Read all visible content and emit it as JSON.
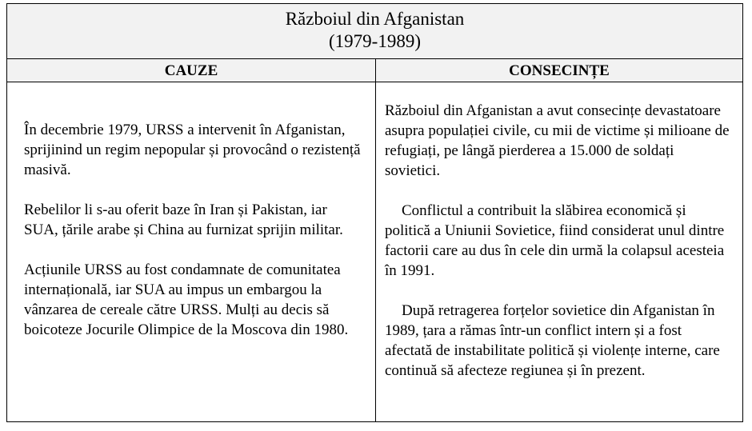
{
  "document": {
    "title_line1": "Războiul din Afganistan",
    "title_line2": "(1979-1989)",
    "headers": {
      "causes": "CAUZE",
      "consequences": "CONSECINȚE"
    },
    "causes": [
      "În decembrie 1979, URSS a intervenit în Afganistan, sprijinind un regim nepopular și provocând o rezistență masivă.",
      "Rebelilor li s-au oferit baze în Iran și Pakistan, iar SUA, țările arabe și China au furnizat sprijin militar.",
      "Acțiunile URSS au fost condamnate de comunitatea internațională, iar SUA au impus un embargou la vânzarea de cereale către URSS. Mulți au decis să boicoteze Jocurile Olimpice de la Moscova din 1980."
    ],
    "consequences": [
      "Războiul din Afganistan a avut consecințe devastatoare asupra populației civile, cu mii de victime și milioane de refugiați, pe lângă pierderea a 15.000 de soldați sovietici.",
      "Conflictul a contribuit la slăbirea economică și politică a Uniunii Sovietice, fiind considerat unul dintre factorii care au dus în cele din urmă la colapsul acesteia în 1991.",
      "După retragerea forțelor sovietice din Afganistan în 1989, țara a rămas într-un conflict intern și a fost afectată de instabilitate politică și violențe interne, care continuă să afecteze regiunea și în prezent."
    ]
  }
}
